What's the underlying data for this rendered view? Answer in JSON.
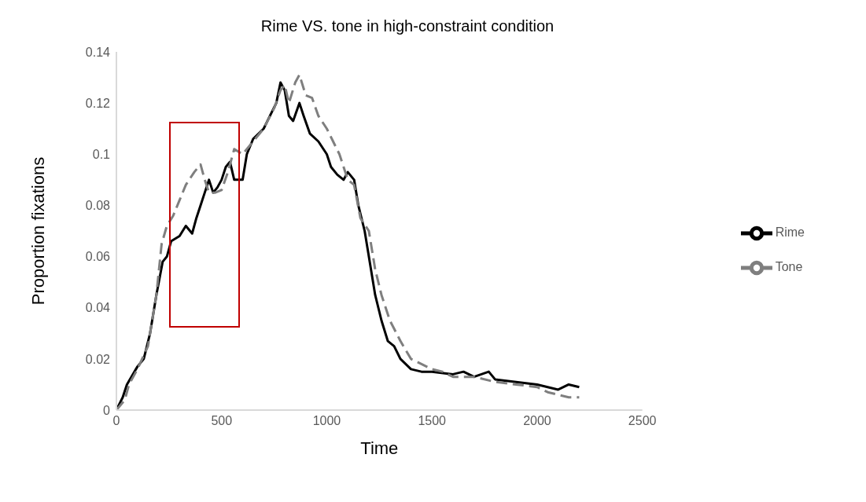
{
  "chart_data": {
    "type": "line",
    "title": "Rime VS. tone in high-constraint condition",
    "xlabel": "Time",
    "ylabel": "Proportion fixations",
    "xlim": [
      0,
      2500
    ],
    "xticks": [
      0,
      500,
      1000,
      1500,
      2000,
      2500
    ],
    "ylim": [
      0,
      0.14
    ],
    "yticks": [
      0,
      0.02,
      0.04,
      0.06,
      0.08,
      0.1,
      0.12,
      0.14
    ],
    "grid": false,
    "legend": "right",
    "marker": "none",
    "series": [
      {
        "name": "Rime",
        "color": "#000000",
        "line_style": "solid",
        "x": [
          0,
          30,
          50,
          100,
          130,
          160,
          190,
          220,
          240,
          260,
          300,
          330,
          360,
          380,
          400,
          420,
          440,
          460,
          480,
          500,
          520,
          540,
          560,
          600,
          620,
          650,
          700,
          730,
          760,
          780,
          800,
          820,
          840,
          870,
          890,
          920,
          960,
          1000,
          1020,
          1050,
          1080,
          1100,
          1130,
          1150,
          1180,
          1200,
          1230,
          1260,
          1290,
          1320,
          1350,
          1400,
          1450,
          1500,
          1600,
          1650,
          1700,
          1770,
          1800,
          1900,
          2000,
          2050,
          2100,
          2150,
          2200
        ],
        "values": [
          0,
          0.005,
          0.01,
          0.017,
          0.02,
          0.03,
          0.045,
          0.058,
          0.06,
          0.066,
          0.068,
          0.072,
          0.069,
          0.075,
          0.08,
          0.085,
          0.09,
          0.085,
          0.087,
          0.09,
          0.095,
          0.097,
          0.09,
          0.09,
          0.1,
          0.106,
          0.11,
          0.115,
          0.12,
          0.128,
          0.125,
          0.115,
          0.113,
          0.12,
          0.115,
          0.108,
          0.105,
          0.1,
          0.095,
          0.092,
          0.09,
          0.093,
          0.09,
          0.08,
          0.07,
          0.06,
          0.045,
          0.035,
          0.027,
          0.025,
          0.02,
          0.016,
          0.015,
          0.015,
          0.014,
          0.015,
          0.013,
          0.015,
          0.012,
          0.011,
          0.01,
          0.009,
          0.008,
          0.01,
          0.009
        ]
      },
      {
        "name": "Tone",
        "color": "#7f7f7f",
        "line_style": "dashed",
        "x": [
          0,
          40,
          60,
          100,
          150,
          190,
          215,
          240,
          270,
          300,
          330,
          370,
          400,
          420,
          440,
          470,
          500,
          530,
          560,
          600,
          650,
          700,
          750,
          780,
          800,
          820,
          850,
          870,
          900,
          930,
          960,
          1000,
          1030,
          1060,
          1100,
          1130,
          1160,
          1200,
          1230,
          1260,
          1300,
          1350,
          1400,
          1450,
          1500,
          1550,
          1600,
          1700,
          1800,
          1900,
          2000,
          2050,
          2100,
          2150,
          2200
        ],
        "values": [
          0,
          0.004,
          0.01,
          0.016,
          0.025,
          0.045,
          0.065,
          0.072,
          0.076,
          0.082,
          0.088,
          0.093,
          0.096,
          0.09,
          0.085,
          0.085,
          0.086,
          0.093,
          0.102,
          0.1,
          0.105,
          0.11,
          0.118,
          0.125,
          0.127,
          0.12,
          0.128,
          0.131,
          0.123,
          0.122,
          0.115,
          0.11,
          0.105,
          0.1,
          0.09,
          0.088,
          0.075,
          0.07,
          0.055,
          0.045,
          0.035,
          0.027,
          0.02,
          0.018,
          0.016,
          0.015,
          0.013,
          0.013,
          0.011,
          0.01,
          0.009,
          0.007,
          0.006,
          0.005,
          0.005
        ]
      }
    ]
  }
}
